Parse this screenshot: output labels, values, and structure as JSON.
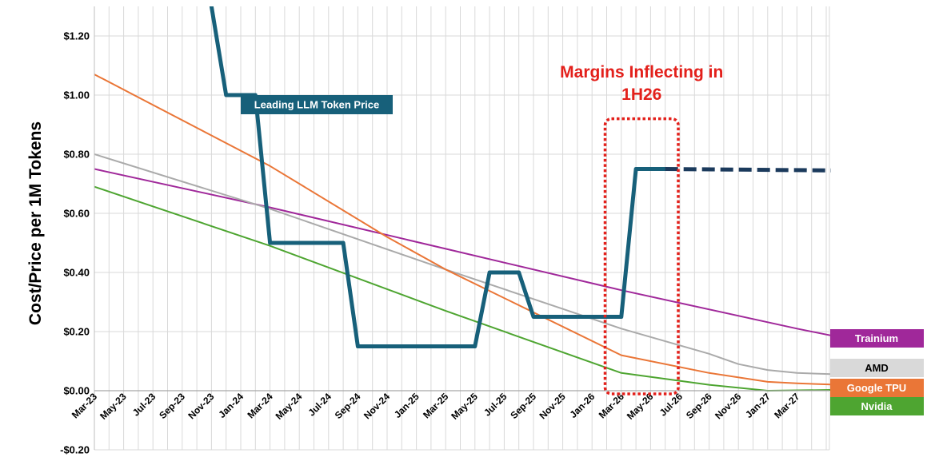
{
  "chart_data": {
    "type": "line",
    "ylabel": "Cost/Price per 1M Tokens",
    "xlabel": "",
    "ylim": [
      -0.2,
      1.3
    ],
    "yticks": [
      -0.2,
      0.0,
      0.2,
      0.4,
      0.6,
      0.8,
      1.0,
      1.2
    ],
    "ytick_labels": [
      "-$0.20",
      "$0.00",
      "$0.20",
      "$0.40",
      "$0.60",
      "$0.80",
      "$1.00",
      "$1.20"
    ],
    "x_start": "Mar-23",
    "x_end": "May-27",
    "xtick_labels": [
      "Mar-23",
      "May-23",
      "Jul-23",
      "Sep-23",
      "Nov-23",
      "Jan-24",
      "Mar-24",
      "May-24",
      "Jul-24",
      "Sep-24",
      "Nov-24",
      "Jan-25",
      "Mar-25",
      "May-25",
      "Jul-25",
      "Sep-25",
      "Nov-25",
      "Jan-26",
      "Mar-26",
      "May-26",
      "Jul-26",
      "Sep-26",
      "Nov-26",
      "Jan-27",
      "Mar-27"
    ],
    "grid": true,
    "legend": "right",
    "series": [
      {
        "name": "Leading LLM Token Price",
        "color": "#17607a",
        "style": "solid",
        "points": [
          [
            "Nov-23",
            1.3
          ],
          [
            "Dec-23",
            1.0
          ],
          [
            "Feb-24",
            1.0
          ],
          [
            "Mar-24",
            0.5
          ],
          [
            "Aug-24",
            0.5
          ],
          [
            "Sep-24",
            0.15
          ],
          [
            "May-25",
            0.15
          ],
          [
            "Jun-25",
            0.4
          ],
          [
            "Aug-25",
            0.4
          ],
          [
            "Sep-25",
            0.25
          ],
          [
            "Mar-26",
            0.25
          ],
          [
            "Apr-26",
            0.75
          ],
          [
            "Jun-26",
            0.75
          ]
        ]
      },
      {
        "name": "Leading LLM Token Price (projected)",
        "color": "#1b3a5c",
        "style": "dashed",
        "points": [
          [
            "Jun-26",
            0.75
          ],
          [
            "Jun-27",
            0.745
          ]
        ]
      },
      {
        "name": "Trainium",
        "color": "#a0289a",
        "style": "solid",
        "points": [
          [
            "Mar-23",
            0.75
          ],
          [
            "Mar-24",
            0.62
          ],
          [
            "Mar-25",
            0.48
          ],
          [
            "Mar-26",
            0.34
          ],
          [
            "Mar-27",
            0.21
          ],
          [
            "Jun-27",
            0.18
          ]
        ]
      },
      {
        "name": "AMD",
        "color": "#aaaaaa",
        "style": "solid",
        "points": [
          [
            "Mar-23",
            0.8
          ],
          [
            "Mar-24",
            0.615
          ],
          [
            "Mar-25",
            0.41
          ],
          [
            "Mar-26",
            0.21
          ],
          [
            "Sep-26",
            0.125
          ],
          [
            "Nov-26",
            0.09
          ],
          [
            "Jan-27",
            0.07
          ],
          [
            "Mar-27",
            0.06
          ],
          [
            "Jun-27",
            0.055
          ]
        ]
      },
      {
        "name": "Google TPU",
        "color": "#ea7637",
        "style": "solid",
        "points": [
          [
            "Mar-23",
            1.07
          ],
          [
            "Mar-24",
            0.76
          ],
          [
            "Nov-24",
            0.52
          ],
          [
            "Mar-25",
            0.41
          ],
          [
            "Mar-26",
            0.12
          ],
          [
            "Sep-26",
            0.06
          ],
          [
            "Jan-27",
            0.03
          ],
          [
            "Mar-27",
            0.025
          ],
          [
            "Jun-27",
            0.02
          ]
        ]
      },
      {
        "name": "Nvidia",
        "color": "#4ea531",
        "style": "solid",
        "points": [
          [
            "Mar-23",
            0.69
          ],
          [
            "Mar-24",
            0.49
          ],
          [
            "Mar-25",
            0.27
          ],
          [
            "Mar-26",
            0.06
          ],
          [
            "Sep-26",
            0.02
          ],
          [
            "Jan-27",
            0.0
          ],
          [
            "Jun-27",
            0.003
          ]
        ]
      }
    ],
    "callout": "Leading LLM Token Price",
    "annotation": {
      "line1": "Margins Inflecting in",
      "line2": "1H26",
      "box_x_range": [
        "Feb-26",
        "Jul-26"
      ],
      "box_y_range": [
        0.0,
        0.92
      ],
      "color": "#e3201b"
    },
    "legend_entries": [
      {
        "name": "Trainium",
        "bg": "#a0289a",
        "fg": "#ffffff"
      },
      {
        "name": "AMD",
        "bg": "#d9d9d9",
        "fg": "#000000"
      },
      {
        "name": "Google TPU",
        "bg": "#ea7637",
        "fg": "#ffffff"
      },
      {
        "name": "Nvidia",
        "bg": "#4ea531",
        "fg": "#ffffff"
      }
    ]
  }
}
